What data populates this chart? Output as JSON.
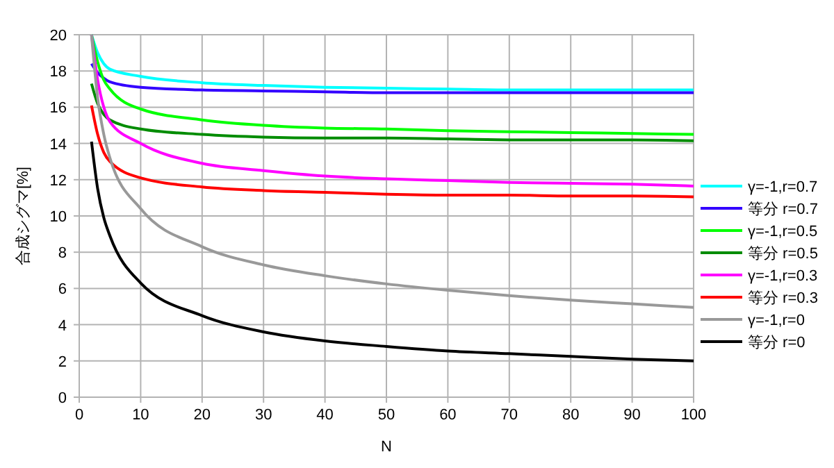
{
  "chart_data": {
    "type": "line",
    "xlabel": "N",
    "ylabel": "合成シグマ[%]",
    "x": [
      2,
      3,
      4,
      5,
      10,
      20,
      30,
      40,
      50,
      60,
      70,
      80,
      90,
      100
    ],
    "xlim": [
      0,
      100
    ],
    "xticks": [
      0,
      10,
      20,
      30,
      40,
      50,
      60,
      70,
      80,
      90,
      100
    ],
    "ylim": [
      0,
      20
    ],
    "yticks": [
      0,
      2,
      4,
      6,
      8,
      10,
      12,
      14,
      16,
      18,
      20
    ],
    "grid": true,
    "legend": "right",
    "marker": "none",
    "line_style": "solid",
    "series": [
      {
        "name": "γ=-1,r=0.7",
        "color": "#00ffff",
        "values": [
          20,
          19,
          18.4,
          18.1,
          17.7,
          17.35,
          17.2,
          17.1,
          17.05,
          17,
          16.95,
          16.95,
          16.95,
          16.95
        ]
      },
      {
        "name": "等分 r=0.7",
        "color": "#3300ff",
        "values": [
          18.4,
          17.9,
          17.6,
          17.4,
          17.1,
          16.95,
          16.9,
          16.85,
          16.8,
          16.8,
          16.8,
          16.8,
          16.8,
          16.8
        ]
      },
      {
        "name": "γ=-1,r=0.5",
        "color": "#00ff00",
        "values": [
          20,
          18.5,
          17.5,
          17,
          15.9,
          15.3,
          15,
          14.85,
          14.8,
          14.7,
          14.65,
          14.6,
          14.55,
          14.5
        ]
      },
      {
        "name": "等分 r=0.5",
        "color": "#008c00",
        "values": [
          17.3,
          16.2,
          15.6,
          15.3,
          14.8,
          14.5,
          14.35,
          14.3,
          14.3,
          14.25,
          14.2,
          14.2,
          14.2,
          14.15
        ]
      },
      {
        "name": "γ=-1,r=0.3",
        "color": "#ff00ff",
        "values": [
          20,
          17.5,
          16,
          15.2,
          14,
          12.9,
          12.5,
          12.2,
          12.05,
          11.95,
          11.85,
          11.8,
          11.75,
          11.65
        ]
      },
      {
        "name": "等分 r=0.3",
        "color": "#ff0000",
        "values": [
          16.1,
          14.5,
          13.5,
          13,
          12.1,
          11.6,
          11.4,
          11.3,
          11.2,
          11.15,
          11.15,
          11.1,
          11.1,
          11.05
        ]
      },
      {
        "name": "γ=-1,r=0",
        "color": "#999999",
        "values": [
          20,
          16.5,
          14.5,
          13.2,
          10.4,
          8.3,
          7.3,
          6.7,
          6.25,
          5.9,
          5.6,
          5.35,
          5.15,
          4.95
        ]
      },
      {
        "name": "等分 r=0",
        "color": "#000000",
        "values": [
          14.1,
          11.5,
          9.9,
          8.9,
          6.3,
          4.5,
          3.6,
          3.1,
          2.8,
          2.55,
          2.4,
          2.25,
          2.1,
          2
        ]
      }
    ]
  }
}
